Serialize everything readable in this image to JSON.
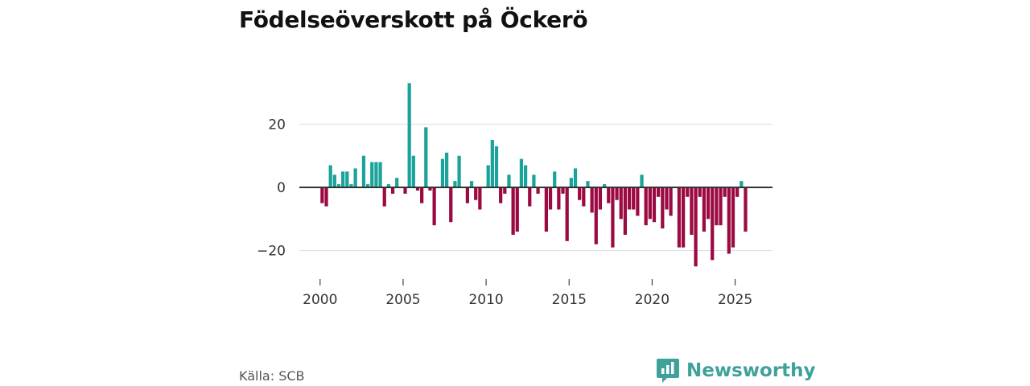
{
  "title": "Födelseöverskott på Öckerö",
  "source": "Källa: SCB",
  "brand": {
    "name": "Newsworthy",
    "icon": "newsworthy-logo-icon",
    "color": "#3fa29a"
  },
  "colors": {
    "positive": "#1aa39a",
    "negative": "#9b0a42",
    "grid": "#dddddd",
    "zero_line": "#333333"
  },
  "chart_data": {
    "type": "bar",
    "title": "Födelseöverskott på Öckerö",
    "xlabel": "",
    "ylabel": "",
    "ylim": [
      -30,
      36
    ],
    "xlim": [
      1998.75,
      2027.25
    ],
    "y_ticks": [
      20,
      0,
      -20
    ],
    "y_tick_labels": [
      "20",
      "0",
      "−20"
    ],
    "x_ticks": [
      2000,
      2005,
      2010,
      2015,
      2020,
      2025
    ],
    "x_tick_labels": [
      "2000",
      "2005",
      "2010",
      "2015",
      "2020",
      "2025"
    ],
    "grid": true,
    "series": [
      {
        "name": "Födelseöverskott",
        "granularity": "quarterly",
        "start_year": 2000,
        "values": [
          -5,
          -6,
          7,
          4,
          1,
          5,
          5,
          1,
          6,
          0,
          10,
          1,
          8,
          8,
          8,
          -6,
          1,
          -2,
          3,
          0,
          -2,
          33,
          10,
          -1,
          -5,
          19,
          -1,
          -12,
          0,
          9,
          11,
          -11,
          2,
          10,
          0,
          -5,
          2,
          -4,
          -7,
          0,
          7,
          15,
          13,
          -5,
          -2,
          4,
          -15,
          -14,
          9,
          7,
          -6,
          4,
          -2,
          0,
          -14,
          -7,
          5,
          -7,
          -2,
          -17,
          3,
          6,
          -4,
          -6,
          2,
          -8,
          -18,
          -7,
          1,
          -5,
          -19,
          -4,
          -10,
          -15,
          -7,
          -7,
          -9,
          4,
          -12,
          -10,
          -11,
          -3,
          -13,
          -7,
          -9,
          0,
          -19,
          -19,
          -3,
          -15,
          -25,
          -3,
          -14,
          -10,
          -23,
          -12,
          -12,
          -3,
          -21,
          -19,
          -3,
          2,
          -14
        ]
      }
    ]
  }
}
